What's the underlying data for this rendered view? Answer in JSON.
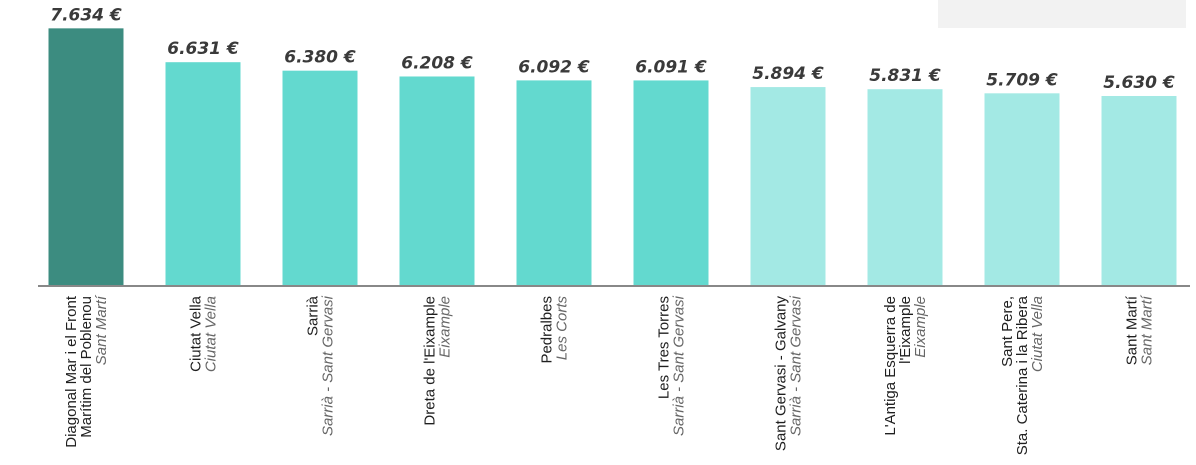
{
  "chart_data": {
    "type": "bar",
    "title": "",
    "xlabel": "",
    "ylabel": "",
    "ylim": [
      0,
      8000
    ],
    "grid": false,
    "categories": [
      {
        "lines": [
          "Diagonal Mar i el Front",
          "Marítim del Poblenou"
        ],
        "district": "Sant Martí"
      },
      {
        "lines": [
          "Ciutat Vella"
        ],
        "district": "Ciutat Vella"
      },
      {
        "lines": [
          "Sarrià"
        ],
        "district": "Sarrià - Sant Gervasi"
      },
      {
        "lines": [
          "Dreta de l'Eixample"
        ],
        "district": "Eixample"
      },
      {
        "lines": [
          "Pedralbes"
        ],
        "district": "Les Corts"
      },
      {
        "lines": [
          "Les Tres Torres"
        ],
        "district": "Sarrià - Sant Gervasi"
      },
      {
        "lines": [
          "Sant Gervasi - Galvany"
        ],
        "district": "Sarrià - Sant Gervasi"
      },
      {
        "lines": [
          "L'Antiga Esquerra de",
          "l'Eixample"
        ],
        "district": "Eixample"
      },
      {
        "lines": [
          "Sant Pere,",
          "Sta. Caterina i la Ribera"
        ],
        "district": "Ciutat Vella"
      },
      {
        "lines": [
          "Sant Martí"
        ],
        "district": "Sant Martí"
      }
    ],
    "values": [
      7634,
      6631,
      6380,
      6208,
      6092,
      6091,
      5894,
      5831,
      5709,
      5630
    ],
    "value_labels": [
      "7.634 €",
      "6.631 €",
      "6.380 €",
      "6.208 €",
      "6.092 €",
      "6.091 €",
      "5.894 €",
      "5.831 €",
      "5.709 €",
      "5.630 €"
    ],
    "bar_colors": [
      "#3c8c80",
      "#63d9cf",
      "#63d9cf",
      "#63d9cf",
      "#63d9cf",
      "#63d9cf",
      "#a3e9e4",
      "#a3e9e4",
      "#a3e9e4",
      "#a3e9e4"
    ],
    "baseline_color": "#888888"
  }
}
